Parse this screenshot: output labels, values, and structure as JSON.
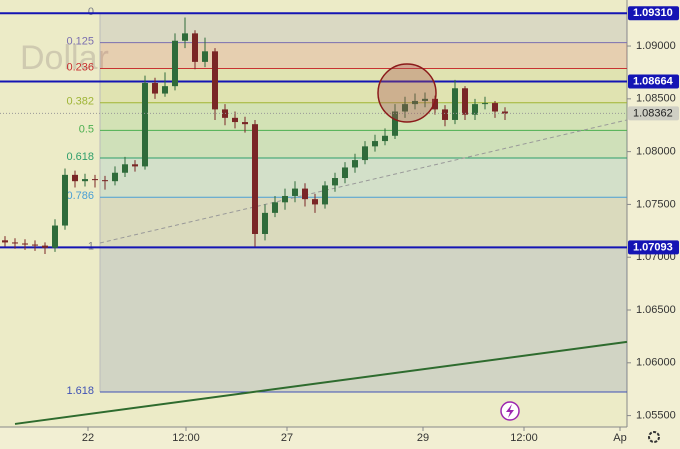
{
  "chart_data": {
    "type": "candlestick",
    "watermark": "Dollar",
    "x": [
      0,
      1,
      2,
      3,
      4,
      5,
      6,
      7,
      8,
      9,
      10,
      11,
      12,
      13,
      14,
      15,
      16,
      17,
      18,
      19,
      20,
      21,
      22,
      23,
      24,
      25,
      26,
      27,
      28,
      29,
      30,
      31,
      32,
      33,
      34,
      35,
      36,
      37,
      38,
      39,
      40,
      41,
      42,
      43,
      44,
      45,
      46,
      47,
      48,
      49,
      50
    ],
    "candles": {
      "open": [
        1.0716,
        1.0714,
        1.0713,
        1.0712,
        1.0711,
        1.0709,
        1.073,
        1.0778,
        1.0772,
        1.0774,
        1.0773,
        1.0772,
        1.078,
        1.0788,
        1.0786,
        1.0865,
        1.0855,
        1.0862,
        1.0905,
        1.0912,
        1.0885,
        1.0895,
        1.084,
        1.0832,
        1.0828,
        1.0826,
        1.0722,
        1.0742,
        1.0752,
        1.0758,
        1.0765,
        1.0755,
        1.075,
        1.0768,
        1.0775,
        1.0785,
        1.0792,
        1.0805,
        1.081,
        1.0815,
        1.0838,
        1.0845,
        1.0848,
        1.085,
        1.084,
        1.083,
        1.086,
        1.0835,
        1.0845,
        1.0846,
        1.0838
      ],
      "high": [
        1.072,
        1.0718,
        1.0717,
        1.0716,
        1.0714,
        1.0736,
        1.0784,
        1.0782,
        1.0779,
        1.0778,
        1.0777,
        1.0786,
        1.0795,
        1.0792,
        1.0872,
        1.087,
        1.0875,
        1.0912,
        1.0927,
        1.0915,
        1.0908,
        1.0898,
        1.0845,
        1.0838,
        1.0833,
        1.083,
        1.075,
        1.0758,
        1.0765,
        1.0772,
        1.077,
        1.076,
        1.0772,
        1.078,
        1.079,
        1.0798,
        1.081,
        1.0816,
        1.0822,
        1.0845,
        1.0852,
        1.0855,
        1.0856,
        1.0853,
        1.0844,
        1.0868,
        1.0862,
        1.085,
        1.0852,
        1.0848,
        1.0842
      ],
      "low": [
        1.071,
        1.0708,
        1.0707,
        1.0706,
        1.0703,
        1.0705,
        1.0726,
        1.0766,
        1.0767,
        1.0766,
        1.0764,
        1.0768,
        1.0776,
        1.0781,
        1.0783,
        1.085,
        1.0852,
        1.0858,
        1.0898,
        1.0878,
        1.088,
        1.083,
        1.0825,
        1.0822,
        1.0818,
        1.071,
        1.0716,
        1.0738,
        1.0745,
        1.0752,
        1.0748,
        1.0742,
        1.0746,
        1.0762,
        1.077,
        1.078,
        1.0788,
        1.08,
        1.0806,
        1.0812,
        1.0832,
        1.084,
        1.0842,
        1.0835,
        1.0824,
        1.0826,
        1.083,
        1.083,
        1.084,
        1.0832,
        1.083
      ],
      "close": [
        1.0714,
        1.0713,
        1.0712,
        1.0711,
        1.0709,
        1.073,
        1.0778,
        1.0772,
        1.0774,
        1.0773,
        1.0772,
        1.078,
        1.0788,
        1.0786,
        1.0865,
        1.0855,
        1.0862,
        1.0905,
        1.0912,
        1.0885,
        1.0895,
        1.084,
        1.0832,
        1.0828,
        1.0826,
        1.0722,
        1.0742,
        1.0752,
        1.0758,
        1.0765,
        1.0755,
        1.075,
        1.0768,
        1.0775,
        1.0785,
        1.0792,
        1.0805,
        1.081,
        1.0815,
        1.0838,
        1.0845,
        1.0848,
        1.085,
        1.084,
        1.083,
        1.086,
        1.0835,
        1.0845,
        1.0846,
        1.0838,
        1.0836
      ],
      "up_color": "#2f6b3a",
      "down_color": "#7a2626"
    },
    "fib": {
      "from": 1.0931,
      "to": 1.07093,
      "x_start": 9.5,
      "levels": [
        0,
        0.125,
        0.236,
        0.382,
        0.5,
        0.618,
        0.786,
        1,
        1.618
      ],
      "colors": [
        "#787b86",
        "#7b6fb0",
        "#c83232",
        "#9fb536",
        "#4caf50",
        "#2e9e6b",
        "#4a9fd5",
        "#787b86",
        "#3f51b5"
      ]
    },
    "levels": [
      {
        "value": 1.0931,
        "label": "1.09310"
      },
      {
        "value": 1.08664,
        "label": "1.08664"
      },
      {
        "value": 1.07093,
        "label": "1.07093"
      }
    ],
    "level_color": "#1414b4",
    "last_price": {
      "value": 1.08362,
      "label": "1.08362"
    },
    "trendlines": [
      {
        "x": [
          9.5,
          62.2
        ],
        "y": [
          1.07135,
          1.083
        ],
        "color": "#999999",
        "dashed": true
      },
      {
        "x": [
          1.0,
          62.2
        ],
        "y": [
          1.05421,
          1.06198
        ],
        "color": "#2e6b2e",
        "dashed": false
      }
    ],
    "xlim": [
      -0.5,
      62.2
    ],
    "xticks": [
      {
        "value": 8.3,
        "label": "22"
      },
      {
        "value": 18.1,
        "label": "12:00"
      },
      {
        "value": 28.2,
        "label": "27"
      },
      {
        "value": 41.8,
        "label": "29"
      },
      {
        "value": 51.9,
        "label": "12:00"
      },
      {
        "value": 61.5,
        "label": "Ap"
      }
    ],
    "ylim": [
      1.05392,
      1.09436
    ],
    "yticks": [
      {
        "value": 1.055,
        "label": "1.05500"
      },
      {
        "value": 1.06,
        "label": "1.06000"
      },
      {
        "value": 1.065,
        "label": "1.06500"
      },
      {
        "value": 1.07,
        "label": "1.07000"
      },
      {
        "value": 1.075,
        "label": "1.07500"
      },
      {
        "value": 1.08,
        "label": "1.08000"
      },
      {
        "value": 1.085,
        "label": "1.08500"
      },
      {
        "value": 1.09,
        "label": "1.09000"
      }
    ]
  }
}
